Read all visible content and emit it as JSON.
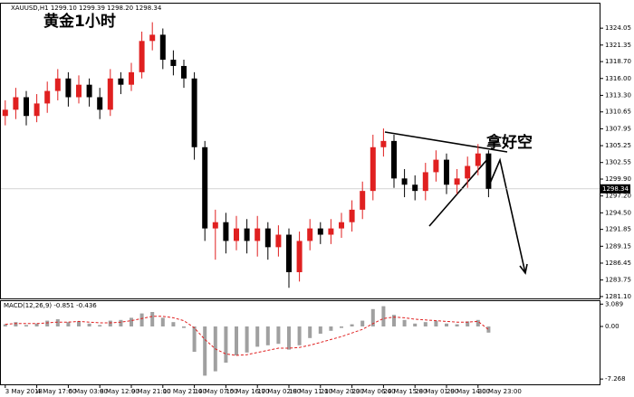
{
  "chart_data": [
    {
      "type": "candlestick",
      "title": "XAUUSD,H1 1299.10 1299.39 1298.20 1298.34",
      "subtitle": "黄金1小时",
      "annotation": "拿好空",
      "last_price": 1298.34,
      "up_color": "#e02020",
      "down_color": "#000000",
      "categories": [
        "3 May 2018",
        null,
        null,
        "4 May 17:00",
        null,
        null,
        "6 May 03:00",
        null,
        null,
        "8 May 12:00",
        null,
        null,
        "9 May 21:00",
        null,
        null,
        "10 May 21:00",
        null,
        null,
        "14 May 07:00",
        null,
        null,
        "15 May 16:00",
        null,
        null,
        "17 May 02:00",
        null,
        null,
        "18 May 11:00",
        null,
        null,
        "21 May 20:00",
        null,
        null,
        "23 May 06:00",
        null,
        null,
        "24 May 15:00",
        null,
        null,
        "28 May 01:00",
        null,
        null,
        "29 May 14:00",
        null,
        null,
        "30 May 23:00",
        null
      ],
      "open": [
        1310,
        1311,
        1313,
        1310,
        1312,
        1314,
        1316,
        1313,
        1315,
        1313,
        1311,
        1316,
        1315,
        1317,
        1322,
        1323,
        1319,
        1318,
        1316,
        1305,
        1292,
        1293,
        1290,
        1292,
        1290,
        1292,
        1289,
        1291,
        1285,
        1290,
        1292,
        1291,
        1292,
        1293,
        1295,
        1298,
        1305,
        1306,
        1300,
        1299,
        1298,
        1301,
        1303,
        1299,
        1300,
        1302,
        1304
      ],
      "high": [
        1312.5,
        1314.5,
        1314,
        1313.5,
        1315.5,
        1317.5,
        1317,
        1316.5,
        1316,
        1314.5,
        1317.5,
        1317,
        1318.5,
        1323.5,
        1325,
        1324,
        1320.5,
        1319,
        1317,
        1306,
        1295,
        1294.5,
        1294,
        1293.5,
        1294,
        1293,
        1292.5,
        1292,
        1291.5,
        1293.5,
        1293,
        1293.5,
        1294.5,
        1296.5,
        1299.5,
        1307,
        1308,
        1307,
        1301.5,
        1300.5,
        1302.5,
        1304.5,
        1304,
        1301.5,
        1303.5,
        1305.5,
        1304.5
      ],
      "low": [
        1308.5,
        1309.5,
        1308.5,
        1309,
        1310.5,
        1312.5,
        1311.5,
        1312,
        1311.5,
        1309.5,
        1310,
        1313.5,
        1314,
        1316,
        1320.5,
        1317.5,
        1316.5,
        1314.5,
        1303,
        1290,
        1287,
        1288,
        1288.5,
        1288,
        1287.5,
        1287,
        1287.5,
        1282.5,
        1283.5,
        1288.5,
        1289.5,
        1289.5,
        1290.5,
        1291.5,
        1293.5,
        1296.5,
        1303.5,
        1298.5,
        1297,
        1296.5,
        1296.5,
        1299.5,
        1297.5,
        1297.5,
        1298.5,
        1300.5,
        1297
      ],
      "close": [
        1311,
        1313,
        1310,
        1312,
        1314,
        1316,
        1313,
        1315,
        1313,
        1311,
        1316,
        1315,
        1317,
        1322,
        1323,
        1319,
        1318,
        1316,
        1305,
        1292,
        1293,
        1290,
        1292,
        1290,
        1292,
        1289,
        1291,
        1285,
        1290,
        1292,
        1291,
        1292,
        1293,
        1295,
        1298,
        1305,
        1306,
        1300,
        1299,
        1298,
        1301,
        1303,
        1299,
        1300,
        1302,
        1304,
        1298.34
      ],
      "ylim": [
        1280.8,
        1327.4
      ],
      "yticks": [
        1324.05,
        1321.35,
        {
          "value": 1318.7,
          "label": "1318.70"
        },
        {
          "value": 1316,
          "label": "1316.00"
        },
        {
          "value": 1313.3,
          "label": "1313.30"
        },
        1310.65,
        1307.95,
        1305.25,
        1302.55,
        {
          "value": 1299.9,
          "label": "1299.90"
        },
        {
          "value": 1297.2,
          "label": "1297.20"
        },
        {
          "value": 1294.5,
          "label": "1294.50"
        },
        1291.85,
        1289.15,
        1286.45,
        1283.75,
        {
          "value": 1281.1,
          "label": "1281.10"
        }
      ]
    },
    {
      "type": "macd",
      "title": "MACD(12,26,9) -0.851 -0.436",
      "series": [
        {
          "name": "MACD",
          "color": "#a0a0a0",
          "values": [
            0.3,
            0.6,
            0.2,
            0.4,
            0.8,
            1.0,
            0.6,
            0.7,
            0.4,
            0.2,
            0.8,
            0.9,
            1.2,
            1.8,
            2.0,
            1.2,
            0.6,
            -0.2,
            -3.5,
            -6.8,
            -6.2,
            -5.0,
            -4.0,
            -3.6,
            -2.8,
            -2.6,
            -2.4,
            -3.2,
            -2.6,
            -1.6,
            -1.0,
            -0.6,
            -0.2,
            0.3,
            0.8,
            2.4,
            2.8,
            1.6,
            0.9,
            0.4,
            0.6,
            0.8,
            0.4,
            0.3,
            0.7,
            0.9,
            -0.851
          ]
        },
        {
          "name": "Signal",
          "color": "#e02020",
          "values": [
            0.3,
            0.4,
            0.4,
            0.4,
            0.5,
            0.6,
            0.6,
            0.7,
            0.6,
            0.5,
            0.5,
            0.6,
            0.8,
            1.1,
            1.4,
            1.4,
            1.2,
            0.8,
            -0.2,
            -1.8,
            -3.1,
            -3.8,
            -4.0,
            -3.9,
            -3.6,
            -3.3,
            -3.0,
            -3.0,
            -2.9,
            -2.6,
            -2.2,
            -1.8,
            -1.4,
            -0.9,
            -0.4,
            0.4,
            1.1,
            1.3,
            1.2,
            1.0,
            0.9,
            0.8,
            0.7,
            0.6,
            0.6,
            0.7,
            -0.436
          ]
        }
      ],
      "ylim": [
        -8.0,
        3.5
      ],
      "yticks": [
        3.089,
        {
          "value": 0,
          "label": "0.00"
        },
        -7.268
      ]
    }
  ]
}
